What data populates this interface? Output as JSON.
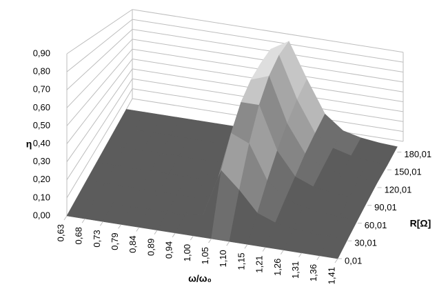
{
  "chart_data": {
    "type": "surface",
    "x_label": "ω/ω₀",
    "y_label": "η",
    "z_label": "R[Ω]",
    "categories": [
      "0,63",
      "0,68",
      "0,73",
      "0,79",
      "0,84",
      "0,89",
      "0,94",
      "1,00",
      "1,05",
      "1,10",
      "1,15",
      "1,21",
      "1,26",
      "1,31",
      "1,36",
      "1,41"
    ],
    "series": [
      {
        "name": "0,01",
        "values": [
          0,
          0,
          0,
          0,
          0,
          0,
          0,
          0,
          0,
          0,
          0,
          0,
          0,
          0,
          0,
          0
        ]
      },
      {
        "name": "30,01",
        "values": [
          0,
          0,
          0,
          0,
          0,
          0,
          0,
          0.02,
          0.3,
          0.2,
          0.08,
          0.04,
          0.02,
          0.01,
          0.01,
          0.01
        ]
      },
      {
        "name": "60,01",
        "values": [
          0,
          0,
          0,
          0,
          0,
          0,
          0,
          0.03,
          0.45,
          0.4,
          0.18,
          0.08,
          0.05,
          0.03,
          0.02,
          0.02
        ]
      },
      {
        "name": "90,01",
        "values": [
          0,
          0,
          0,
          0,
          0,
          0,
          0,
          0.04,
          0.58,
          0.58,
          0.28,
          0.12,
          0.07,
          0.05,
          0.04,
          0.03
        ]
      },
      {
        "name": "120,01",
        "values": [
          0,
          0,
          0,
          0,
          0,
          0,
          0,
          0.04,
          0.67,
          0.72,
          0.38,
          0.17,
          0.09,
          0.06,
          0.05,
          0.04
        ]
      },
      {
        "name": "150,01",
        "values": [
          0,
          0,
          0,
          0,
          0,
          0,
          0,
          0.05,
          0.73,
          0.82,
          0.47,
          0.21,
          0.11,
          0.07,
          0.05,
          0.04
        ]
      },
      {
        "name": "180,01",
        "values": [
          0,
          0,
          0,
          0,
          0,
          0,
          0,
          0.05,
          0.78,
          0.88,
          0.55,
          0.25,
          0.12,
          0.08,
          0.06,
          0.05
        ]
      }
    ],
    "ylim": [
      0,
      0.9
    ],
    "yticks": [
      {
        "value": 0,
        "label": "0,00"
      },
      {
        "value": 0.1,
        "label": "0,10"
      },
      {
        "value": 0.2,
        "label": "0,20"
      },
      {
        "value": 0.3,
        "label": "0,30"
      },
      {
        "value": 0.4,
        "label": "0,40"
      },
      {
        "value": 0.5,
        "label": "0,50"
      },
      {
        "value": 0.6,
        "label": "0,60"
      },
      {
        "value": 0.7,
        "label": "0,70"
      },
      {
        "value": 0.8,
        "label": "0,80"
      },
      {
        "value": 0.9,
        "label": "0,90"
      }
    ],
    "grid": true
  }
}
